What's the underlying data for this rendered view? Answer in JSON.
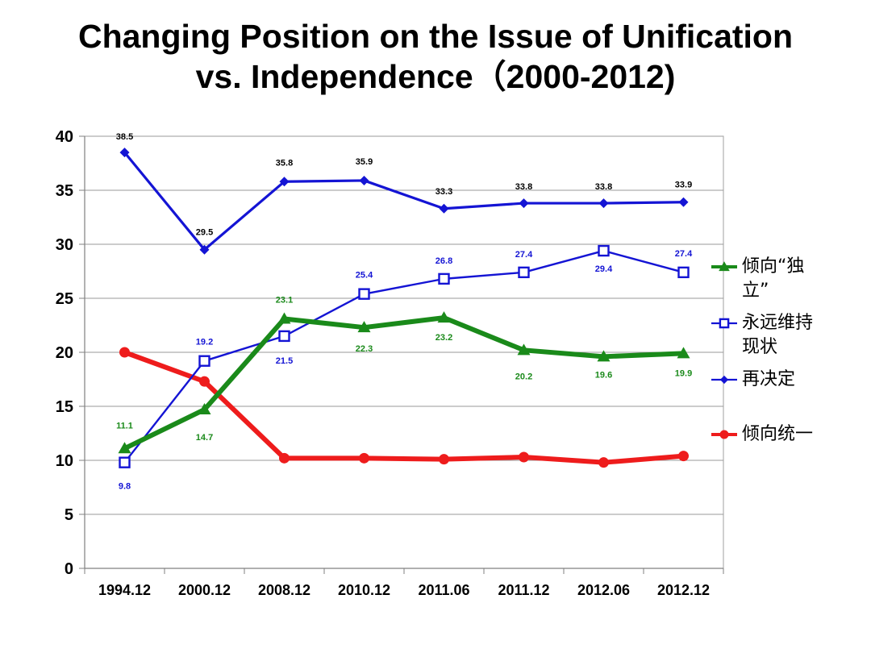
{
  "title_line1": "Changing Position on the Issue of Unification",
  "title_line2": "vs. Independence（2000-2012)",
  "chart_data": {
    "type": "line",
    "categories": [
      "1994.12",
      "2000.12",
      "2008.12",
      "2010.12",
      "2011.06",
      "2011.12",
      "2012.06",
      "2012.12"
    ],
    "ylim": [
      0,
      40
    ],
    "yticks": [
      "0",
      "5",
      "10",
      "15",
      "20",
      "25",
      "30",
      "35",
      "40"
    ],
    "grid": true,
    "legend_position": "right",
    "series": [
      {
        "name": "倾向“独立”",
        "color": "#1a8a1a",
        "marker": "triangle",
        "values": [
          11.1,
          14.7,
          23.1,
          22.3,
          23.2,
          20.2,
          19.6,
          19.9
        ],
        "labels": [
          "11.1",
          "14.7",
          "23.1",
          "22.3",
          "23.2",
          "20.2",
          "19.6",
          "19.9"
        ]
      },
      {
        "name": "永远维持现状",
        "color": "#1414d4",
        "marker": "square-open",
        "values": [
          9.8,
          19.2,
          21.5,
          25.4,
          26.8,
          27.4,
          29.4,
          27.4
        ],
        "labels": [
          "9.8",
          "19.2",
          "21.5",
          "25.4",
          "26.8",
          "27.4",
          "29.4",
          "27.4"
        ]
      },
      {
        "name": "再决定",
        "color": "#1414d4",
        "marker": "diamond",
        "values": [
          38.5,
          29.5,
          35.8,
          35.9,
          33.3,
          33.8,
          33.8,
          33.9
        ],
        "labels": [
          "38.5",
          "29.5",
          "35.8",
          "35.9",
          "33.3",
          "33.8",
          "33.8",
          "33.9"
        ]
      },
      {
        "name": "倾向统一",
        "color": "#ee1c1c",
        "marker": "circle",
        "values": [
          20.0,
          17.3,
          10.2,
          10.2,
          10.1,
          10.3,
          9.8,
          10.4
        ],
        "labels": []
      }
    ]
  },
  "legend": {
    "items": [
      {
        "line1": "倾向“独",
        "line2": "立”"
      },
      {
        "line1": "永远维持",
        "line2": "现状"
      },
      {
        "line1": "再决定",
        "line2": ""
      },
      {
        "line1": "倾向统一",
        "line2": ""
      }
    ]
  }
}
